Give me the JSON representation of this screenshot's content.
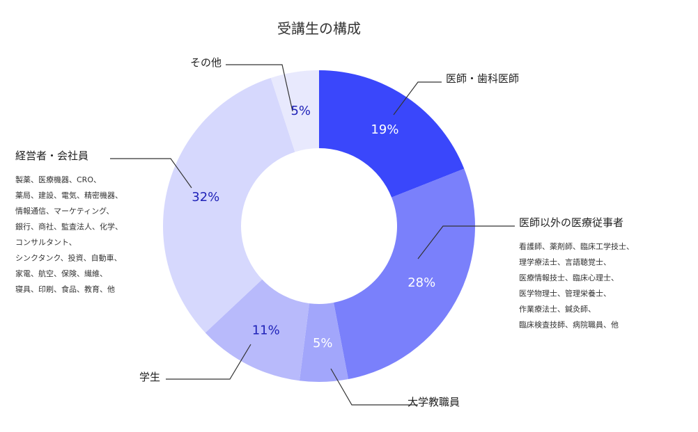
{
  "chart_data": {
    "type": "pie",
    "title": "受講生の構成",
    "slices": [
      {
        "label": "医師・歯科医師",
        "value": 19,
        "value_label": "19%",
        "color": "#3a47fb",
        "details": []
      },
      {
        "label": "医師以外の医療従事者",
        "value": 28,
        "value_label": "28%",
        "color": "#7a80fb",
        "details": [
          "看護師、薬剤師、臨床工学技士、",
          "理学療法士、言語聴覚士、",
          "医療情報技士、臨床心理士、",
          "医学物理士、管理栄養士、",
          "作業療法士、鍼灸師、",
          "臨床検査技師、病院職員、他"
        ]
      },
      {
        "label": "大学教職員",
        "value": 5,
        "value_label": "5%",
        "color": "#a2a6fb",
        "details": []
      },
      {
        "label": "学生",
        "value": 11,
        "value_label": "11%",
        "color": "#b8bafb",
        "details": []
      },
      {
        "label": "経営者・会社員",
        "value": 32,
        "value_label": "32%",
        "color": "#d6d8fd",
        "details": [
          "製薬、医療機器、CRO、",
          "薬局、建設、電気、精密機器、",
          "情報通信、マーケティング、",
          "銀行、商社、監査法人、化学、",
          "コンサルタント、",
          "シンクタンク、投資、自動車、",
          "家電、航空、保険、繊維、",
          "寝具、印刷、食品、教育、他"
        ]
      },
      {
        "label": "その他",
        "value": 5,
        "value_label": "5%",
        "color": "#e8e9fd",
        "details": []
      }
    ]
  }
}
